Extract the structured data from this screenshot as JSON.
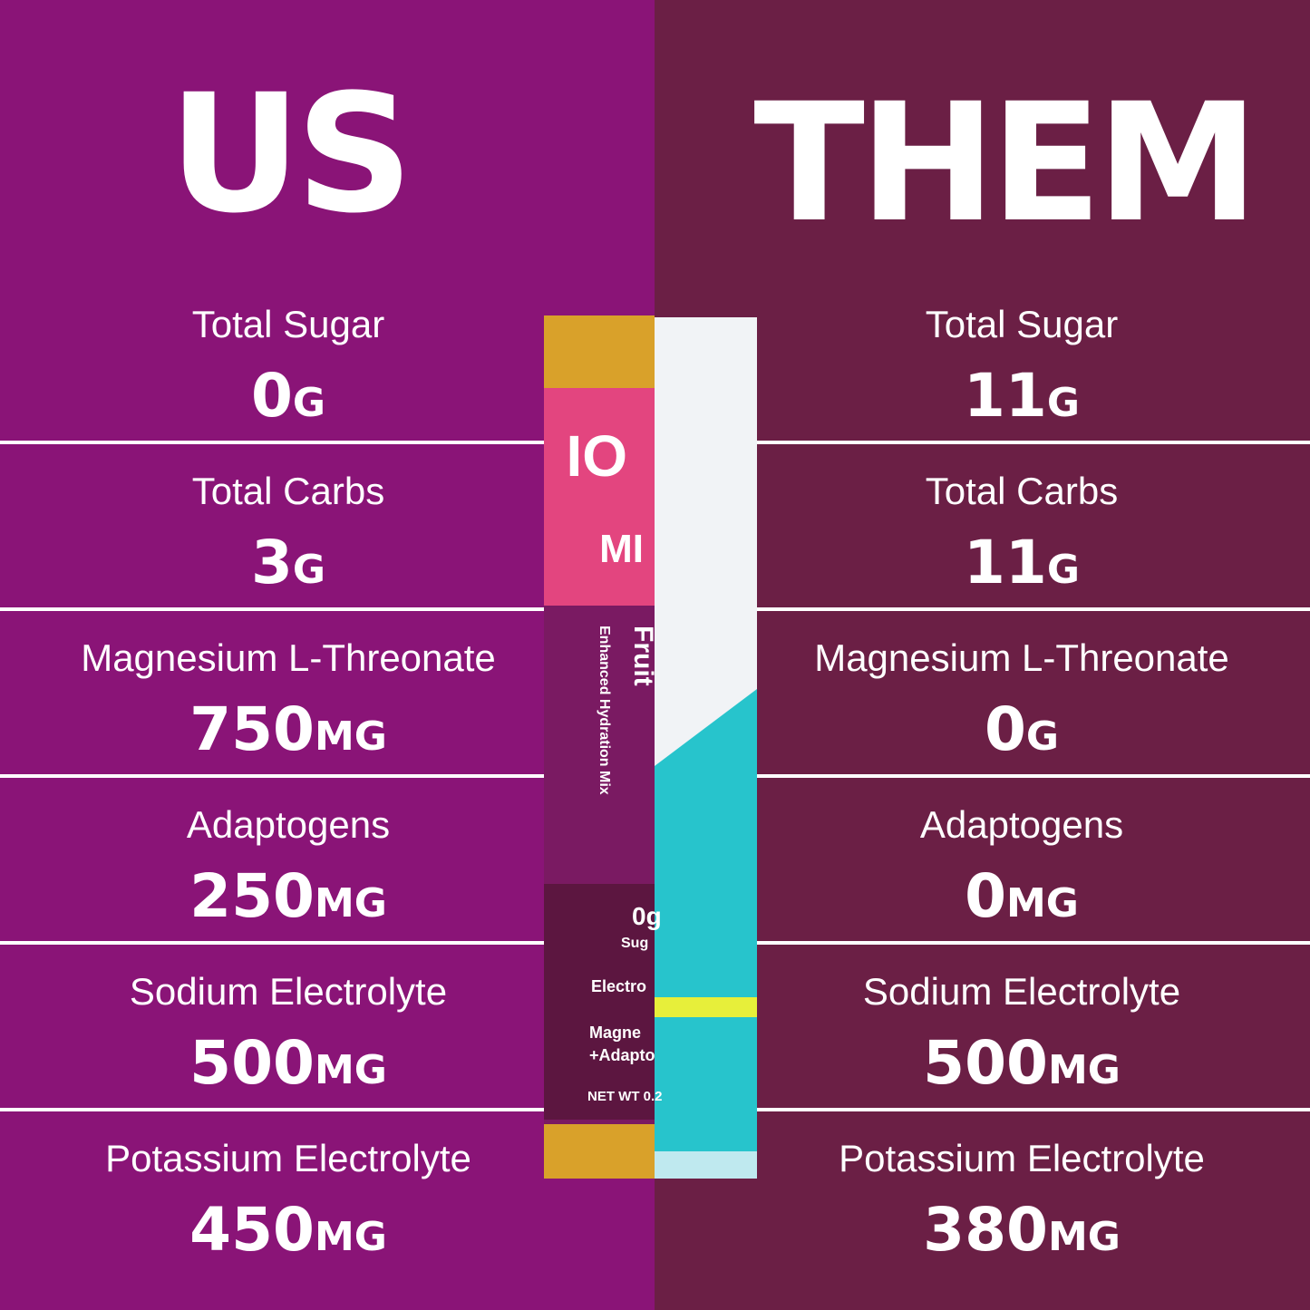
{
  "left": {
    "title": "US",
    "rows": [
      {
        "label": "Total Sugar",
        "value": "0",
        "unit": "G"
      },
      {
        "label": "Total Carbs",
        "value": "3",
        "unit": "G"
      },
      {
        "label": "Magnesium L-Threonate",
        "value": "750",
        "unit": "MG"
      },
      {
        "label": "Adaptogens",
        "value": "250",
        "unit": "MG"
      },
      {
        "label": "Sodium Electrolyte",
        "value": "500",
        "unit": "MG"
      },
      {
        "label": "Potassium Electrolyte",
        "value": "450",
        "unit": "MG"
      }
    ]
  },
  "right": {
    "title": "THEM",
    "rows": [
      {
        "label": "Total Sugar",
        "value": "11",
        "unit": "G"
      },
      {
        "label": "Total Carbs",
        "value": "11",
        "unit": "G"
      },
      {
        "label": "Magnesium L-Threonate",
        "value": "0",
        "unit": "G"
      },
      {
        "label": "Adaptogens",
        "value": "0",
        "unit": "MG"
      },
      {
        "label": "Sodium Electrolyte",
        "value": "500",
        "unit": "MG"
      },
      {
        "label": "Potassium Electrolyte",
        "value": "380",
        "unit": "MG"
      }
    ]
  },
  "packet": {
    "brand_top": "IO",
    "brand_bottom": "MI",
    "flavor": "Fruit",
    "subtitle": "Enhanced Hydration Mix",
    "sugar_value": "0g",
    "sugar_label": "Sug",
    "line1": "Electro",
    "line2": "Magne",
    "line3": "+Adapto",
    "net": "NET WT 0.2"
  }
}
